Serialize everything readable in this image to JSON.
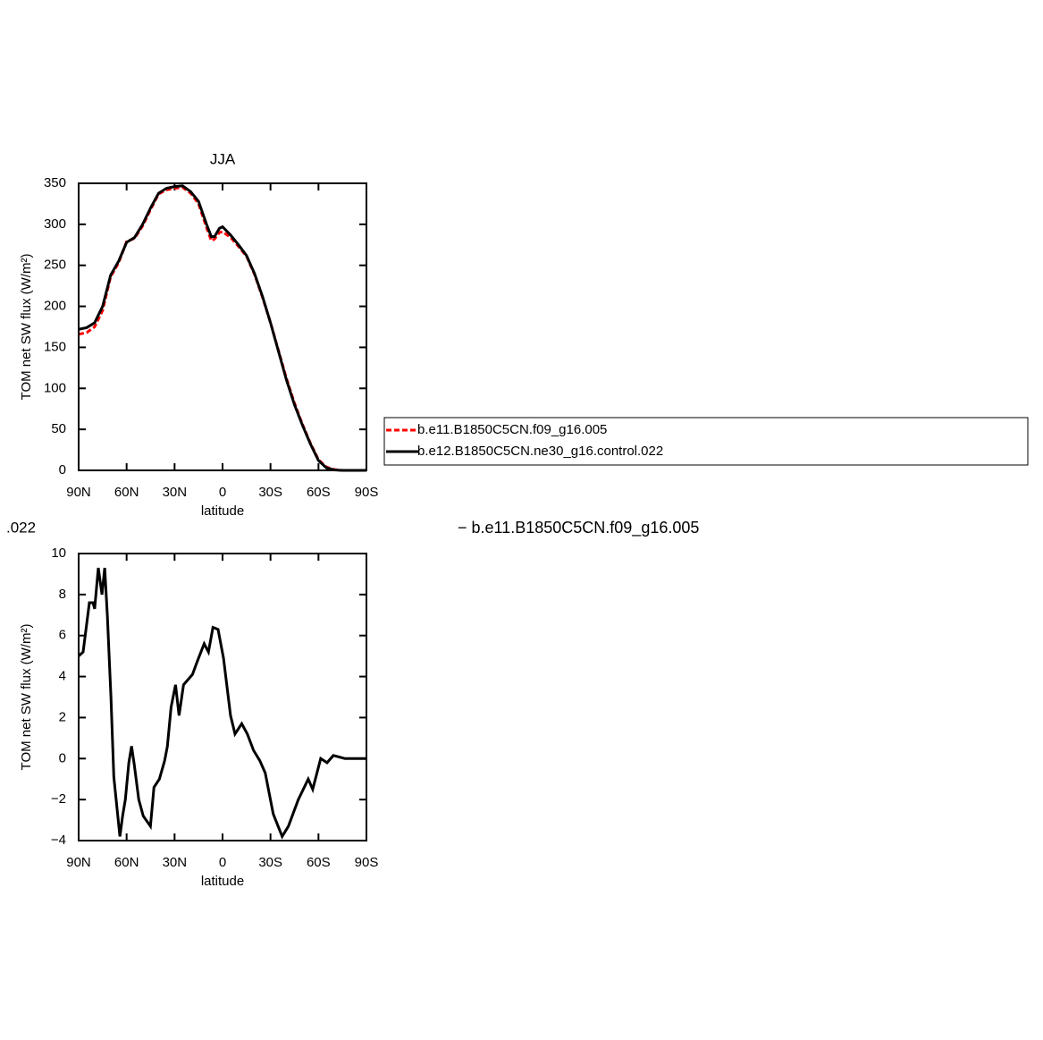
{
  "chart_data": [
    {
      "type": "line",
      "title": "JJA",
      "x_label": "latitude",
      "y_label": "TOM net SW flux (W/m²)",
      "x": [
        90,
        85,
        80,
        75,
        70,
        65,
        60,
        55,
        50,
        45,
        40,
        35,
        30,
        25,
        20,
        15,
        10,
        7,
        5,
        2,
        0,
        -5,
        -10,
        -15,
        -20,
        -25,
        -30,
        -35,
        -40,
        -45,
        -50,
        -55,
        -60,
        -65,
        -70,
        -75,
        -80,
        -85,
        -90
      ],
      "series": [
        {
          "name": "b.e11.B1850C5CN.f09_g16.005",
          "color": "#ff0000",
          "dashed": true,
          "values": [
            166,
            168,
            175,
            195,
            236,
            253,
            279,
            283,
            298,
            318,
            337,
            342,
            344,
            345,
            338,
            325,
            296,
            280,
            282,
            290,
            291,
            284,
            273,
            261,
            239,
            211,
            180,
            146,
            112,
            82,
            56,
            33,
            13,
            4,
            1,
            0,
            0,
            0,
            0
          ]
        },
        {
          "name": "b.e12.B1850C5CN.ne30_g16.control.022",
          "color": "#000000",
          "dashed": false,
          "values": [
            172,
            174,
            180,
            200,
            238,
            255,
            278,
            284,
            300,
            320,
            338,
            344,
            346,
            347,
            340,
            328,
            300,
            285,
            285,
            295,
            297,
            287,
            275,
            262,
            240,
            212,
            180,
            145,
            110,
            80,
            55,
            32,
            12,
            3,
            0.5,
            0,
            0,
            0,
            0
          ]
        }
      ],
      "xlim": [
        90,
        -90
      ],
      "xticks": [
        {
          "value": 90,
          "label": "90N"
        },
        {
          "value": 60,
          "label": "60N"
        },
        {
          "value": 30,
          "label": "30N"
        },
        0,
        {
          "value": -30,
          "label": "30S"
        },
        {
          "value": -60,
          "label": "60S"
        },
        {
          "value": -90,
          "label": "90S"
        }
      ],
      "ylim": [
        0,
        350
      ],
      "yticks": [
        0,
        50,
        100,
        150,
        200,
        250,
        300,
        350
      ],
      "legend": "right"
    },
    {
      "type": "line",
      "x_label": "latitude",
      "y_label": "TOM net SW flux (W/m²)",
      "x": [
        90,
        87.2,
        83.3,
        81,
        80,
        77.7,
        75.4,
        73.7,
        72,
        69.8,
        68,
        64.2,
        62.5,
        60.8,
        58.6,
        56.9,
        55.2,
        52.4,
        49.6,
        45.1,
        42.9,
        39.5,
        36.2,
        34.5,
        32.2,
        29.4,
        27.2,
        24.4,
        21.6,
        18.8,
        16,
        11.5,
        8.8,
        6,
        2.8,
        -0.6,
        -5,
        -7.8,
        -12,
        -15.5,
        -19.4,
        -23.3,
        -26.7,
        -31.7,
        -37.3,
        -41.2,
        -47.4,
        -53.6,
        -56.4,
        -61.4,
        -65.4,
        -69.3,
        -76.6,
        -90
      ],
      "series": [
        {
          "color": "#000000",
          "dashed": false,
          "values": [
            5,
            5.2,
            7.6,
            7.6,
            7.3,
            9.3,
            8,
            9.3,
            6.9,
            3,
            -0.9,
            -3.8,
            -2.8,
            -2,
            -0.2,
            0.6,
            -0.3,
            -2,
            -2.8,
            -3.3,
            -1.4,
            -1,
            -0.1,
            0.6,
            2.5,
            3.6,
            2.1,
            3.6,
            3.85,
            4.1,
            4.7,
            5.6,
            5.2,
            6.4,
            6.3,
            4.9,
            2.1,
            1.2,
            1.7,
            1.2,
            0.4,
            -0.1,
            -0.7,
            -2.7,
            -3.8,
            -3.3,
            -2,
            -1,
            -1.5,
            0,
            -0.2,
            0.15,
            0,
            0
          ]
        }
      ],
      "xlim": [
        90,
        -90
      ],
      "xticks": [
        {
          "value": 90,
          "label": "90N"
        },
        {
          "value": 60,
          "label": "60N"
        },
        {
          "value": 30,
          "label": "30N"
        },
        0,
        {
          "value": -30,
          "label": "30S"
        },
        {
          "value": -60,
          "label": "60S"
        },
        {
          "value": -90,
          "label": "90S"
        }
      ],
      "ylim": [
        -4,
        10
      ],
      "yticks": [
        {
          "value": -4,
          "label": "−4"
        },
        {
          "value": -2,
          "label": "−2"
        },
        0,
        2,
        4,
        6,
        8,
        10
      ]
    }
  ],
  "annotations": [
    ".022",
    "− b.e11.B1850C5CN.f09_g16.005"
  ]
}
